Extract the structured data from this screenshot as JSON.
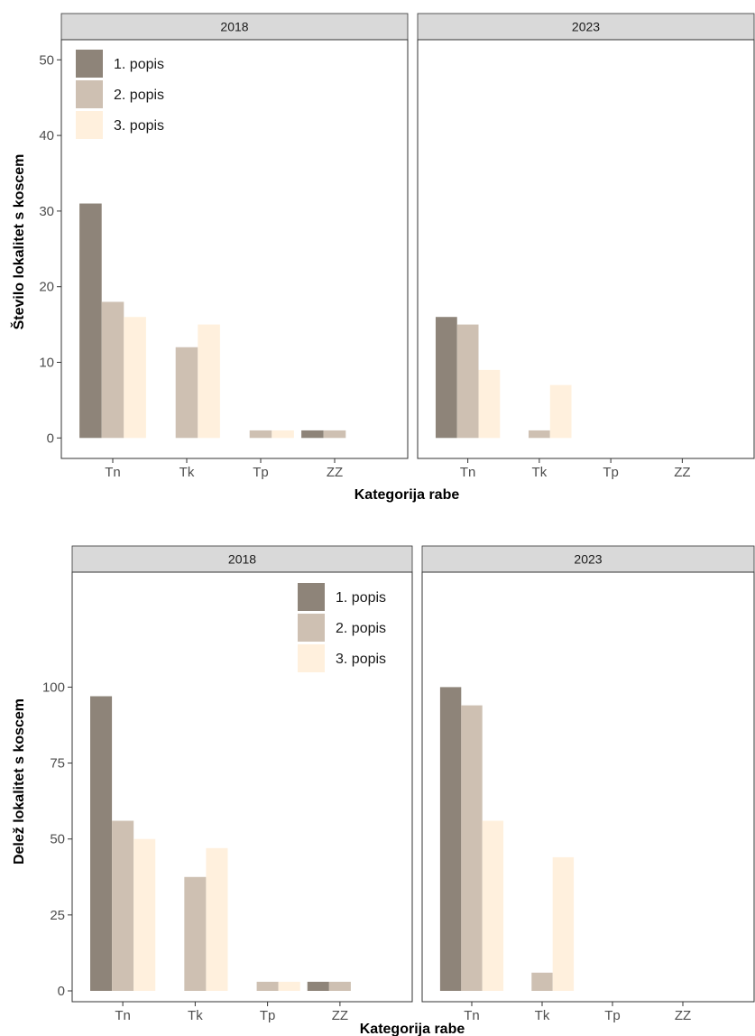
{
  "series_colors": [
    "#8e8479",
    "#cec0b2",
    "#fff0dd"
  ],
  "chart_data": [
    {
      "type": "bar",
      "ylabel": "Število lokalitet s koscem",
      "xlabel": "Kategorija rabe",
      "ylim": [
        0,
        52
      ],
      "yticks": [
        0,
        10,
        20,
        30,
        40,
        50
      ],
      "legend_position": "top-left",
      "legend": [
        "1. popis",
        "2. popis",
        "3. popis"
      ],
      "categories": [
        "Tn",
        "Tk",
        "Tp",
        "ZZ"
      ],
      "panels": [
        {
          "strip": "2018",
          "series": [
            {
              "name": "1. popis",
              "values": [
                31,
                0,
                0,
                1
              ]
            },
            {
              "name": "2. popis",
              "values": [
                18,
                12,
                1,
                1
              ]
            },
            {
              "name": "3. popis",
              "values": [
                16,
                15,
                1,
                0
              ]
            }
          ]
        },
        {
          "strip": "2023",
          "series": [
            {
              "name": "1. popis",
              "values": [
                16,
                0,
                0,
                0
              ]
            },
            {
              "name": "2. popis",
              "values": [
                15,
                1,
                0,
                0
              ]
            },
            {
              "name": "3. popis",
              "values": [
                9,
                7,
                0,
                0
              ]
            }
          ]
        }
      ]
    },
    {
      "type": "bar",
      "ylabel": "Delež lokalitet s koscem",
      "xlabel": "Kategorija rabe",
      "ylim": [
        0,
        105
      ],
      "yticks": [
        0,
        25,
        50,
        75,
        100
      ],
      "legend_position": "top-right",
      "legend": [
        "1. popis",
        "2. popis",
        "3. popis"
      ],
      "categories": [
        "Tn",
        "Tk",
        "Tp",
        "ZZ"
      ],
      "panels": [
        {
          "strip": "2018",
          "series": [
            {
              "name": "1. popis",
              "values": [
                97,
                0,
                0,
                3
              ]
            },
            {
              "name": "2. popis",
              "values": [
                56,
                37.5,
                3,
                3
              ]
            },
            {
              "name": "3. popis",
              "values": [
                50,
                47,
                3,
                0
              ]
            }
          ]
        },
        {
          "strip": "2023",
          "series": [
            {
              "name": "1. popis",
              "values": [
                100,
                0,
                0,
                0
              ]
            },
            {
              "name": "2. popis",
              "values": [
                94,
                6,
                0,
                0
              ]
            },
            {
              "name": "3. popis",
              "values": [
                56,
                44,
                0,
                0
              ]
            }
          ]
        }
      ]
    }
  ]
}
